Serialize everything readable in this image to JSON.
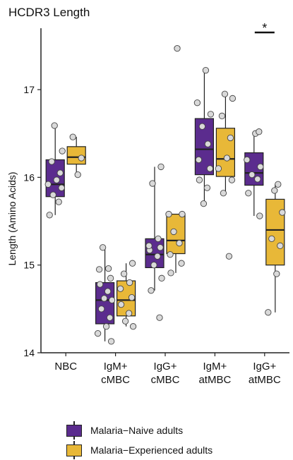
{
  "chart_data": {
    "type": "box",
    "title": "HCDR3 Length",
    "ylabel": "Length (Amino Acids)",
    "xlabel": "",
    "ylim": [
      14.0,
      17.7
    ],
    "yticks": [
      14,
      15,
      16,
      17
    ],
    "categories": [
      {
        "line1": "NBC",
        "line2": ""
      },
      {
        "line1": "IgM+",
        "line2": "cMBC"
      },
      {
        "line1": "IgG+",
        "line2": "cMBC"
      },
      {
        "line1": "IgM+",
        "line2": "atMBC"
      },
      {
        "line1": "IgG+",
        "line2": "atMBC"
      }
    ],
    "series": [
      {
        "name": "Malaria−Naive adults",
        "color": "#5B2C8E",
        "boxes": [
          {
            "whisker_low": 15.57,
            "q1": 15.78,
            "median": 15.92,
            "q3": 16.2,
            "whisker_high": 16.59,
            "points": [
              15.57,
              15.72,
              15.8,
              15.88,
              15.92,
              15.97,
              16.05,
              16.18,
              16.3,
              16.59
            ]
          },
          {
            "whisker_low": 14.13,
            "q1": 14.33,
            "median": 14.6,
            "q3": 14.8,
            "whisker_high": 15.2,
            "points": [
              14.13,
              14.22,
              14.3,
              14.4,
              14.5,
              14.6,
              14.62,
              14.7,
              14.78,
              14.85,
              14.95,
              14.96,
              15.2
            ]
          },
          {
            "whisker_low": 14.71,
            "q1": 14.97,
            "median": 15.12,
            "q3": 15.3,
            "whisker_high": 16.12,
            "points": [
              14.4,
              14.71,
              14.85,
              15.0,
              15.1,
              15.17,
              15.2,
              15.22,
              15.3,
              15.93,
              16.12
            ]
          },
          {
            "whisker_low": 15.7,
            "q1": 16.03,
            "median": 16.32,
            "q3": 16.67,
            "whisker_high": 17.22,
            "points": [
              15.7,
              15.88,
              15.97,
              16.1,
              16.2,
              16.38,
              16.58,
              16.72,
              16.85,
              17.22
            ]
          },
          {
            "whisker_low": 15.56,
            "q1": 15.91,
            "median": 16.05,
            "q3": 16.28,
            "whisker_high": 16.52,
            "points": [
              15.56,
              15.82,
              15.98,
              16.03,
              16.12,
              16.2,
              16.5,
              16.52
            ]
          }
        ]
      },
      {
        "name": "Malaria−Experienced adults",
        "color": "#E8B838",
        "boxes": [
          {
            "whisker_low": 16.03,
            "q1": 16.15,
            "median": 16.23,
            "q3": 16.35,
            "whisker_high": 16.46,
            "points": [
              16.03,
              16.22,
              16.46
            ]
          },
          {
            "whisker_low": 14.3,
            "q1": 14.42,
            "median": 14.6,
            "q3": 14.82,
            "whisker_high": 15.02,
            "points": [
              14.3,
              14.36,
              14.45,
              14.55,
              14.63,
              14.73,
              14.8,
              14.9,
              15.02
            ]
          },
          {
            "whisker_low": 14.91,
            "q1": 15.13,
            "median": 15.28,
            "q3": 15.58,
            "whisker_high": 15.58,
            "points": [
              14.91,
              15.02,
              15.12,
              15.25,
              15.38,
              15.58,
              15.58,
              17.47
            ]
          },
          {
            "whisker_low": 15.82,
            "q1": 16.01,
            "median": 16.21,
            "q3": 16.56,
            "whisker_high": 16.95,
            "points": [
              15.1,
              15.82,
              15.97,
              16.1,
              16.22,
              16.45,
              16.7,
              16.9,
              16.95
            ]
          },
          {
            "whisker_low": 14.46,
            "q1": 15.0,
            "median": 15.4,
            "q3": 15.75,
            "whisker_high": 15.92,
            "points": [
              14.46,
              14.9,
              15.22,
              15.3,
              15.6,
              15.85,
              15.92
            ]
          }
        ]
      }
    ],
    "significance": {
      "category_index": 4,
      "label": "*"
    },
    "legend_position": "bottom"
  }
}
